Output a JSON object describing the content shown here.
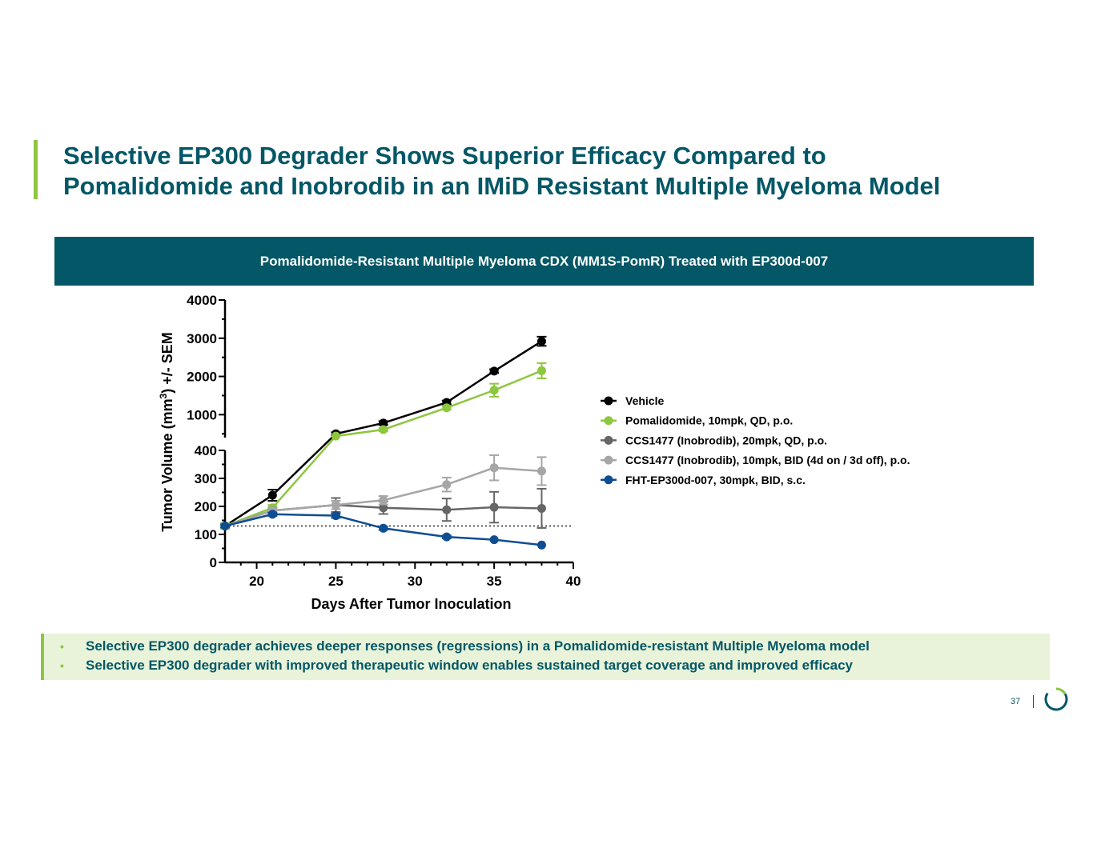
{
  "slide": {
    "title_line1": "Selective EP300 Degrader Shows Superior Efficacy Compared to",
    "title_line2": "Pomalidomide and Inobrodib in an IMiD Resistant Multiple Myeloma Model",
    "banner": "Pomalidomide-Resistant Multiple Myeloma CDX (MM1S-PomR) Treated with EP300d-007",
    "bullets": [
      "Selective EP300 degrader achieves deeper responses (regressions) in a Pomalidomide-resistant Multiple Myeloma model",
      "Selective EP300 degrader with improved therapeutic window enables sustained target coverage and improved efficacy"
    ],
    "bullet_marker": "•",
    "page_number": "37",
    "colors": {
      "brand_teal": "#035766",
      "accent_green": "#8dc63f",
      "bullet_bg": "#e8f3d9"
    }
  },
  "chart_data": {
    "type": "line",
    "title": "",
    "xlabel": "Days After Tumor Inoculation",
    "ylabel_main": "Tumor Volume  (mm",
    "ylabel_sup": "3",
    "ylabel_tail": ") +/- SEM",
    "xlim": [
      18,
      40
    ],
    "x_ticks": [
      20,
      25,
      30,
      35,
      40
    ],
    "ylim_lower": [
      0,
      400
    ],
    "ylim_upper": [
      400,
      4000
    ],
    "y_ticks_lower": [
      0,
      100,
      200,
      300,
      400
    ],
    "y_ticks_upper": [
      1000,
      2000,
      3000,
      4000
    ],
    "baseline": 130,
    "legend_position": "right",
    "series": [
      {
        "name": "Vehicle",
        "color": "#000000",
        "x": [
          18,
          21,
          25,
          28,
          32,
          35,
          38
        ],
        "y": [
          130,
          240,
          500,
          780,
          1320,
          2140,
          2920
        ],
        "err": [
          10,
          20,
          40,
          50,
          50,
          50,
          120
        ]
      },
      {
        "name": "Pomalidomide, 10mpk, QD, p.o.",
        "color": "#8dc63f",
        "x": [
          18,
          21,
          25,
          28,
          32,
          35,
          38
        ],
        "y": [
          130,
          195,
          440,
          610,
          1180,
          1640,
          2150
        ],
        "err": [
          10,
          10,
          30,
          40,
          50,
          170,
          200
        ]
      },
      {
        "name": "CCS1477 (Inobrodib), 20mpk, QD, p.o.",
        "color": "#666666",
        "x": [
          18,
          21,
          25,
          28,
          32,
          35,
          38
        ],
        "y": [
          130,
          185,
          205,
          195,
          188,
          197,
          193
        ],
        "err": [
          5,
          10,
          25,
          22,
          40,
          55,
          70
        ]
      },
      {
        "name": "CCS1477 (Inobrodib), 10mpk, BID (4d on / 3d off), p.o.",
        "color": "#a6a6a6",
        "x": [
          18,
          21,
          25,
          28,
          32,
          35,
          38
        ],
        "y": [
          130,
          185,
          205,
          222,
          278,
          338,
          326
        ],
        "err": [
          5,
          10,
          15,
          15,
          25,
          45,
          50
        ]
      },
      {
        "name": "FHT-EP300d-007, 30mpk, BID, s.c.",
        "color": "#0f4d92",
        "x": [
          18,
          21,
          25,
          28,
          32,
          35,
          38
        ],
        "y": [
          130,
          172,
          167,
          122,
          91,
          81,
          62
        ],
        "err": [
          5,
          6,
          8,
          6,
          5,
          4,
          4
        ]
      }
    ]
  }
}
